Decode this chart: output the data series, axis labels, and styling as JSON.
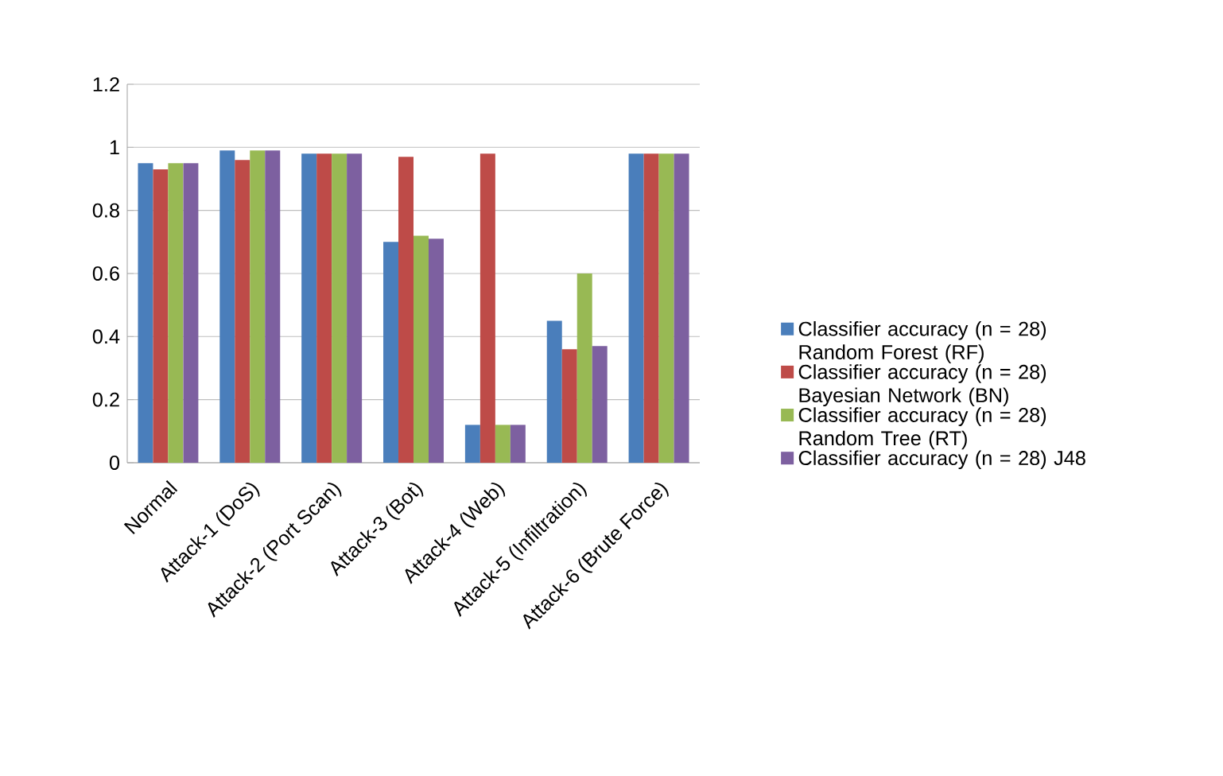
{
  "chart_data": {
    "type": "bar",
    "categories": [
      "Normal",
      "Attack-1 (DoS)",
      "Attack-2 (Port Scan)",
      "Attack-3 (Bot)",
      "Attack-4 (Web)",
      "Attack-5 (Infiltration)",
      "Attack-6 (Brute Force)"
    ],
    "series": [
      {
        "name": "Classifier accuracy (n = 28) Random Forest (RF)",
        "color": "#4a7ebb",
        "values": [
          0.95,
          0.99,
          0.98,
          0.7,
          0.12,
          0.45,
          0.98
        ]
      },
      {
        "name": "Classifier accuracy (n = 28) Bayesian Network (BN)",
        "color": "#be4b48",
        "values": [
          0.93,
          0.96,
          0.98,
          0.97,
          0.98,
          0.36,
          0.98
        ]
      },
      {
        "name": "Classifier accuracy (n = 28) Random Tree (RT)",
        "color": "#98b954",
        "values": [
          0.95,
          0.99,
          0.98,
          0.72,
          0.12,
          0.6,
          0.98
        ]
      },
      {
        "name": "Classifier accuracy (n = 28) J48",
        "color": "#7d60a0",
        "values": [
          0.95,
          0.99,
          0.98,
          0.71,
          0.12,
          0.37,
          0.98
        ]
      }
    ],
    "ylim": [
      0,
      1.2
    ],
    "yticks": [
      0,
      0.2,
      0.4,
      0.6,
      0.8,
      1,
      1.2
    ],
    "grid": "y",
    "legend": "right"
  }
}
